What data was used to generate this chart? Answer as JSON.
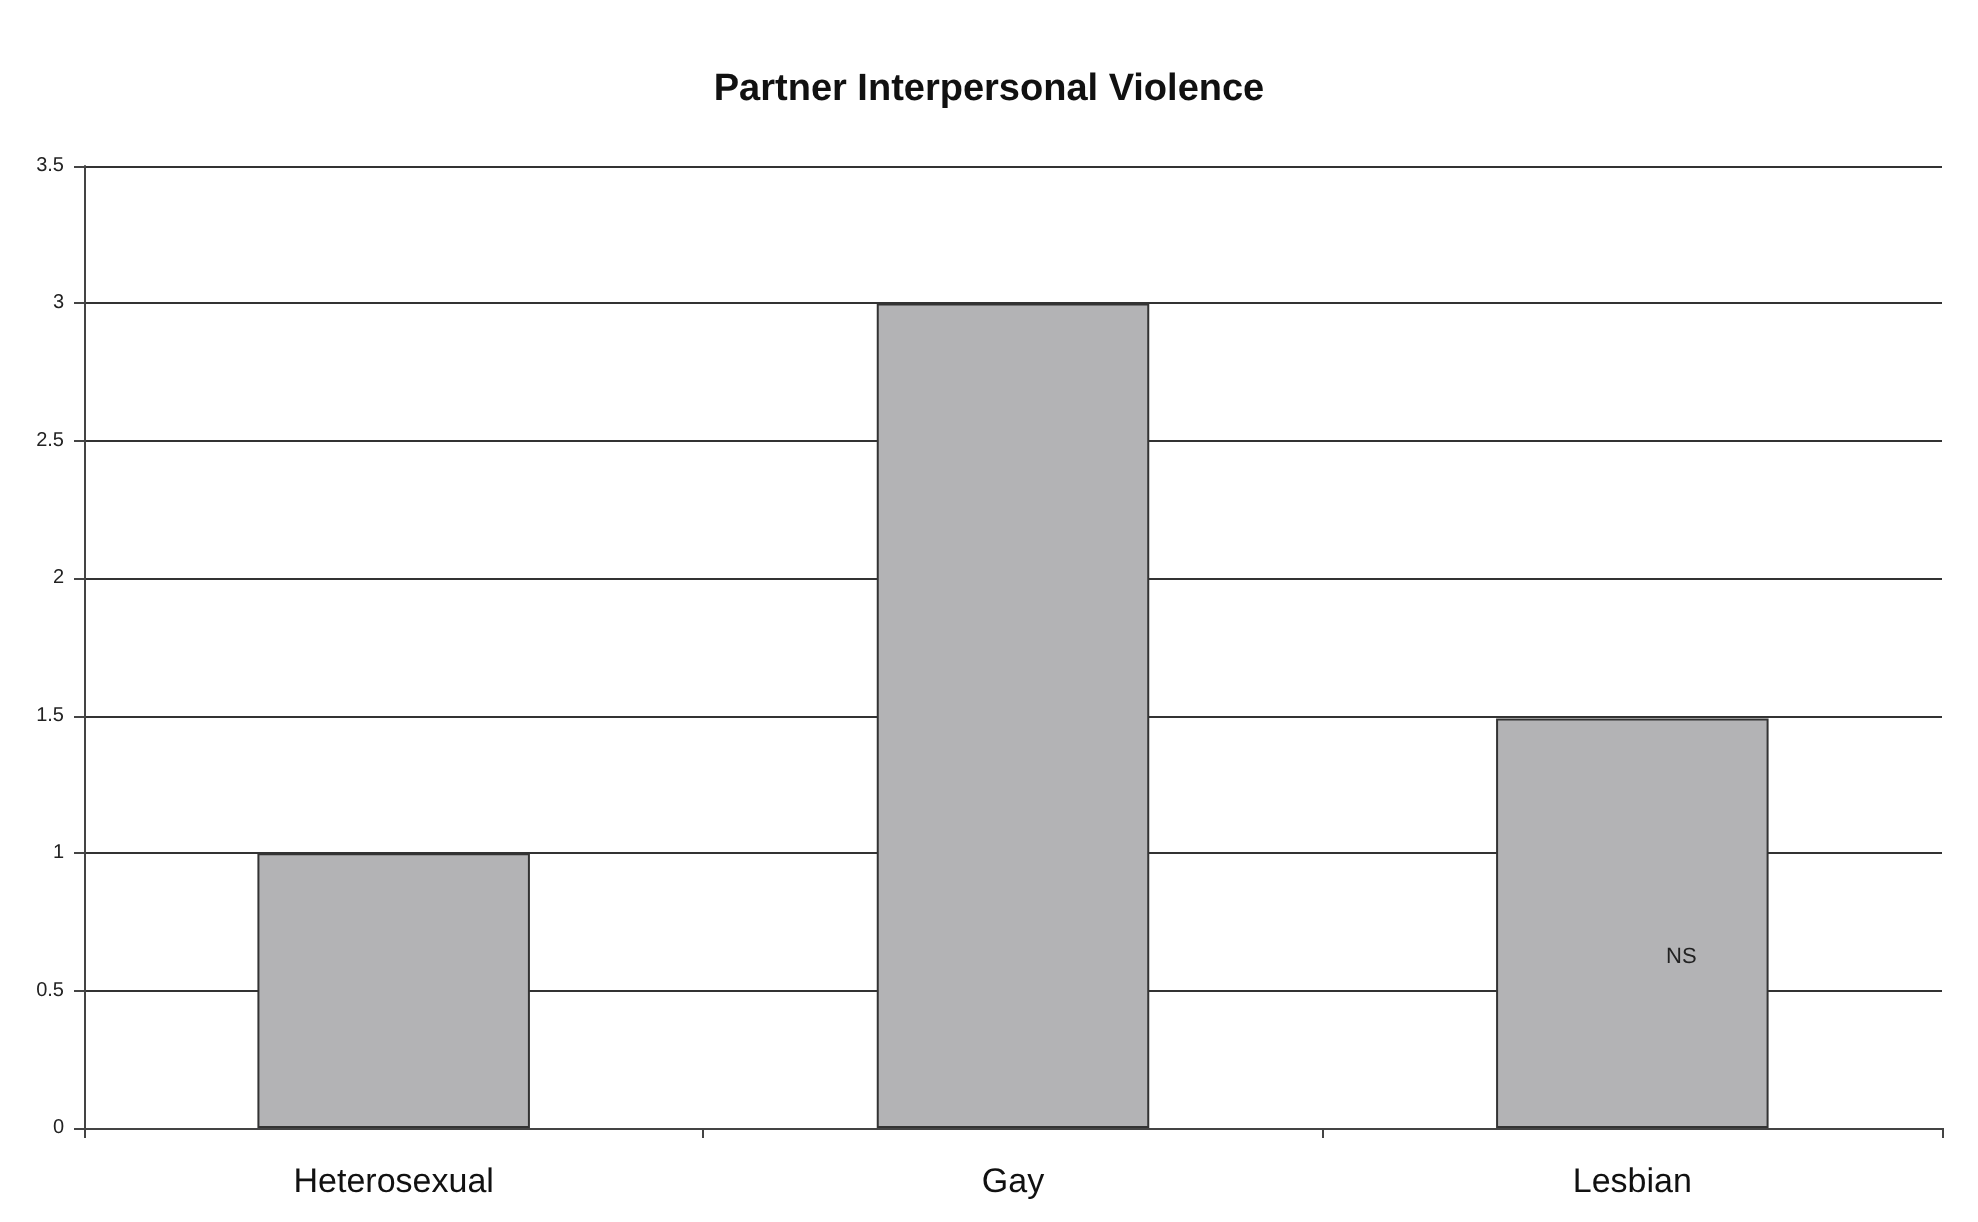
{
  "chart_data": {
    "type": "bar",
    "title": "Partner Interpersonal Violence",
    "categories": [
      "Heterosexual",
      "Gay",
      "Lesbian"
    ],
    "values": [
      1,
      3,
      1.49
    ],
    "color": "#b3b3b5",
    "ylim": [
      0,
      3.5
    ],
    "yticks": [
      0,
      0.5,
      1,
      1.5,
      2,
      2.5,
      3,
      3.5
    ],
    "grid": "y",
    "annotations": [
      "NS"
    ]
  }
}
